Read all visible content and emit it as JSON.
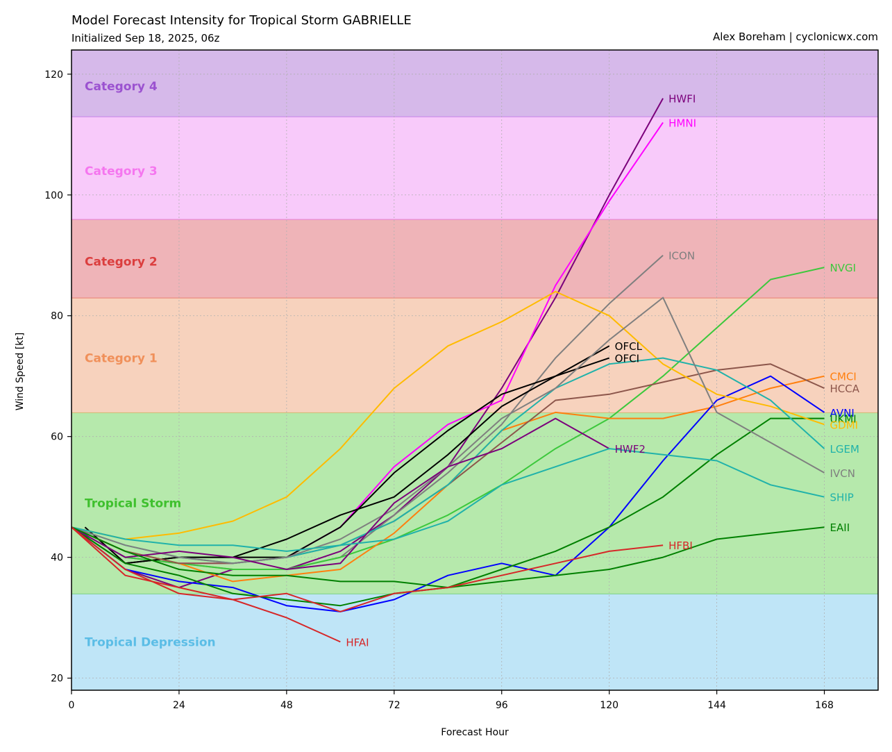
{
  "title": "Model Forecast Intensity for Tropical Storm GABRIELLE",
  "subtitle": "Initialized Sep 18, 2025, 06z",
  "credit": "Alex Boreham | cyclonicwx.com",
  "chart_data": {
    "type": "line",
    "xlabel": "Forecast Hour",
    "ylabel": "Wind Speed [kt]",
    "xlim": [
      0,
      180
    ],
    "ylim": [
      18,
      124
    ],
    "xticks": [
      0,
      24,
      48,
      72,
      96,
      120,
      144,
      168
    ],
    "yticks": [
      20,
      40,
      60,
      80,
      100,
      120
    ],
    "grid": true,
    "bands": [
      {
        "label": "Tropical Depression",
        "from": 18,
        "to": 34,
        "fill": "#bfe5f7",
        "edge": "#7fd18a",
        "text_color": "#5bbde6",
        "label_y": 26
      },
      {
        "label": "Tropical Storm",
        "from": 34,
        "to": 64,
        "fill": "#b6e9ac",
        "edge": "#d0b872",
        "text_color": "#3fc02e",
        "label_y": 49
      },
      {
        "label": "Category 1",
        "from": 64,
        "to": 83,
        "fill": "#f7d2bd",
        "edge": "#ea7f70",
        "text_color": "#f0905a",
        "label_y": 73
      },
      {
        "label": "Category 2",
        "from": 83,
        "to": 96,
        "fill": "#efb4b8",
        "edge": "#e47ad6",
        "text_color": "#db3e3e",
        "label_y": 89
      },
      {
        "label": "Category 3",
        "from": 96,
        "to": 113,
        "fill": "#f8cafa",
        "edge": "#c47ee8",
        "text_color": "#f576ef",
        "label_y": 104
      },
      {
        "label": "Category 4",
        "from": 113,
        "to": 124,
        "fill": "#d6b9ea",
        "edge": null,
        "text_color": "#9b52d0",
        "label_y": 118
      }
    ],
    "series": [
      {
        "name": "HWFI",
        "color": "#7b007b",
        "x": [
          0,
          12,
          24,
          36,
          48,
          60,
          72,
          84,
          96,
          108,
          120,
          132
        ],
        "y": [
          45,
          38,
          35,
          38,
          38,
          41,
          47,
          55,
          68,
          83,
          100,
          116
        ]
      },
      {
        "name": "HMNI",
        "color": "#ff00ff",
        "x": [
          0,
          12,
          24,
          36,
          48,
          60,
          72,
          84,
          96,
          108,
          120,
          132
        ],
        "y": [
          45,
          40,
          39,
          39,
          40,
          45,
          55,
          62,
          66,
          85,
          99,
          112
        ]
      },
      {
        "name": "ICON",
        "color": "#7f7f7f",
        "x": [
          0,
          12,
          24,
          36,
          48,
          60,
          72,
          84,
          96,
          108,
          120,
          132
        ],
        "y": [
          45,
          40,
          39,
          38,
          38,
          40,
          47,
          54,
          62,
          73,
          82,
          90
        ]
      },
      {
        "name": "NVGI",
        "color": "#3cc83c",
        "x": [
          0,
          12,
          24,
          36,
          48,
          60,
          72,
          84,
          96,
          108,
          120,
          132,
          144,
          156,
          168
        ],
        "y": [
          45,
          40,
          39,
          38,
          38,
          40,
          43,
          47,
          52,
          58,
          63,
          70,
          78,
          86,
          88
        ]
      },
      {
        "name": "OFCL",
        "color": "#000000",
        "x": [
          0,
          12,
          24,
          36,
          48,
          60,
          72,
          84,
          96,
          108,
          120
        ],
        "y": [
          45,
          39,
          40,
          40,
          40,
          45,
          54,
          61,
          67,
          70,
          75
        ]
      },
      {
        "name": "OFCI",
        "color": "#000000",
        "x": [
          3,
          12,
          24,
          36,
          48,
          60,
          72,
          84,
          96,
          108,
          120
        ],
        "y": [
          45,
          39,
          40,
          40,
          43,
          47,
          50,
          57,
          65,
          70,
          73
        ]
      },
      {
        "name": "CMCI",
        "color": "#ff7f0e",
        "x": [
          0,
          12,
          24,
          36,
          48,
          60,
          72,
          84,
          96,
          108,
          120,
          132,
          144,
          156,
          168
        ],
        "y": [
          45,
          41,
          39,
          36,
          37,
          38,
          44,
          52,
          61,
          64,
          63,
          63,
          65,
          68,
          70
        ]
      },
      {
        "name": "HCCA",
        "color": "#8c564b",
        "x": [
          0,
          12,
          24,
          36,
          48,
          60,
          72,
          84,
          96,
          108,
          120,
          132,
          144,
          156,
          168
        ],
        "y": [
          45,
          41,
          39,
          39,
          40,
          42,
          46,
          52,
          59,
          66,
          67,
          69,
          71,
          72,
          68
        ]
      },
      {
        "name": "AVNI",
        "color": "#0000ff",
        "x": [
          0,
          12,
          24,
          36,
          48,
          60,
          72,
          84,
          96,
          108,
          120,
          132,
          144,
          156,
          168
        ],
        "y": [
          45,
          38,
          36,
          35,
          32,
          31,
          33,
          37,
          39,
          37,
          45,
          56,
          66,
          70,
          64
        ]
      },
      {
        "name": "UKMI",
        "color": "#008000",
        "x": [
          0,
          12,
          24,
          36,
          48,
          60,
          72,
          84,
          96,
          108,
          120,
          132,
          144,
          156,
          168
        ],
        "y": [
          45,
          39,
          37,
          34,
          33,
          32,
          34,
          35,
          38,
          41,
          45,
          50,
          57,
          63,
          63
        ]
      },
      {
        "name": "GDMI",
        "color": "#ffbb00",
        "x": [
          0,
          12,
          24,
          36,
          48,
          60,
          72,
          84,
          96,
          108,
          120,
          132,
          144,
          156,
          168
        ],
        "y": [
          45,
          43,
          44,
          46,
          50,
          58,
          68,
          75,
          79,
          84,
          80,
          72,
          67,
          65,
          62
        ]
      },
      {
        "name": "LGEM",
        "color": "#20b2aa",
        "x": [
          0,
          12,
          24,
          36,
          48,
          60,
          72,
          84,
          96,
          108,
          120,
          132,
          144,
          156,
          168
        ],
        "y": [
          45,
          42,
          40,
          39,
          40,
          42,
          46,
          52,
          61,
          68,
          72,
          73,
          71,
          66,
          58
        ]
      },
      {
        "name": "IVCN",
        "color": "#7f7f7f",
        "x": [
          0,
          12,
          24,
          36,
          48,
          60,
          72,
          84,
          96,
          108,
          120,
          132,
          144,
          156,
          168
        ],
        "y": [
          45,
          42,
          40,
          39,
          40,
          43,
          48,
          55,
          63,
          68,
          76,
          83,
          64,
          59,
          54
        ]
      },
      {
        "name": "HWF2",
        "color": "#7b007b",
        "x": [
          0,
          12,
          24,
          36,
          48,
          60,
          72,
          84,
          96,
          108,
          120
        ],
        "y": [
          45,
          40,
          41,
          40,
          38,
          39,
          49,
          55,
          58,
          63,
          58
        ]
      },
      {
        "name": "SHIP",
        "color": "#20b2aa",
        "x": [
          0,
          12,
          24,
          36,
          48,
          60,
          72,
          84,
          96,
          108,
          120,
          132,
          144,
          156,
          168
        ],
        "y": [
          45,
          43,
          42,
          42,
          41,
          42,
          43,
          46,
          52,
          55,
          58,
          57,
          56,
          52,
          50
        ]
      },
      {
        "name": "EAII",
        "color": "#008000",
        "x": [
          0,
          12,
          24,
          36,
          48,
          60,
          72,
          84,
          96,
          108,
          120,
          132,
          144,
          156,
          168
        ],
        "y": [
          45,
          41,
          38,
          37,
          37,
          36,
          36,
          35,
          36,
          37,
          38,
          40,
          43,
          44,
          45
        ]
      },
      {
        "name": "HFBI",
        "color": "#d62728",
        "x": [
          0,
          12,
          24,
          36,
          48,
          60,
          72,
          84,
          96,
          108,
          120,
          132
        ],
        "y": [
          45,
          37,
          35,
          33,
          34,
          31,
          34,
          35,
          37,
          39,
          41,
          42
        ]
      },
      {
        "name": "HFAI",
        "color": "#d62728",
        "x": [
          0,
          12,
          24,
          36,
          48,
          60
        ],
        "y": [
          45,
          38,
          34,
          33,
          30,
          26
        ]
      }
    ]
  }
}
